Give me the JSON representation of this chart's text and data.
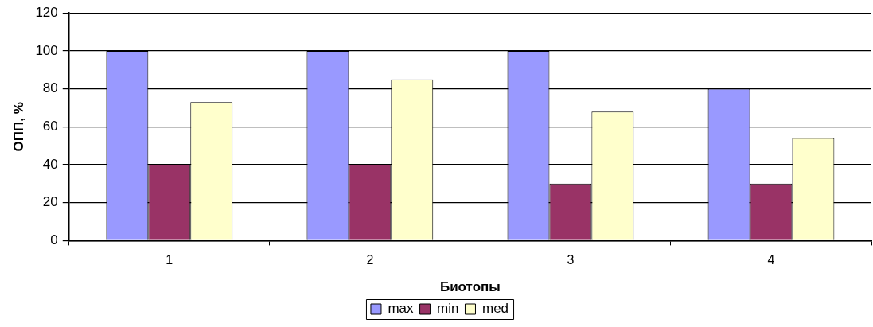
{
  "chart_data": {
    "type": "bar",
    "xlabel": "Биотопы",
    "ylabel": "ОПП, %",
    "categories": [
      "1",
      "2",
      "3",
      "4"
    ],
    "series": [
      {
        "name": "max",
        "color": "#9999ff",
        "values": [
          100,
          100,
          100,
          80
        ]
      },
      {
        "name": "min",
        "color": "#993366",
        "values": [
          40,
          40,
          30,
          30
        ]
      },
      {
        "name": "med",
        "color": "#ffffcc",
        "values": [
          73,
          85,
          68,
          54
        ]
      }
    ],
    "ylim": [
      0,
      120
    ],
    "yticks": [
      0,
      20,
      40,
      60,
      80,
      100,
      120
    ],
    "grid": "y",
    "legend": "bottom"
  }
}
